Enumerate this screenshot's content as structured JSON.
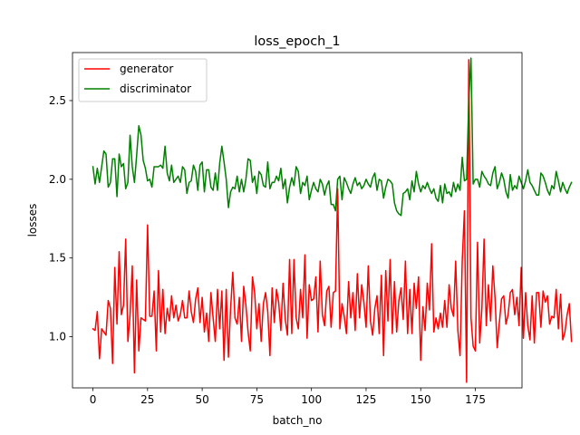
{
  "chart_data": {
    "type": "line",
    "title": "loss_epoch_1",
    "xlabel": "batch_no",
    "ylabel": "losses",
    "xlim": [
      -9.35,
      196.35
    ],
    "ylim": [
      0.675,
      2.805
    ],
    "xticks": [
      0,
      25,
      50,
      75,
      100,
      125,
      150,
      175
    ],
    "yticks": [
      1.0,
      1.5,
      2.0,
      2.5
    ],
    "xtick_labels": [
      "0",
      "25",
      "50",
      "75",
      "100",
      "125",
      "150",
      "175"
    ],
    "ytick_labels": [
      "1.0",
      "1.5",
      "2.0",
      "2.5"
    ],
    "grid": false,
    "legend_position": "upper-left",
    "series": [
      {
        "name": "generator",
        "color": "#ff0000",
        "values": [
          1.05,
          1.04,
          1.16,
          0.86,
          1.05,
          1.03,
          1.01,
          1.23,
          1.18,
          0.83,
          1.44,
          1.08,
          1.54,
          1.14,
          1.2,
          1.62,
          0.97,
          1.14,
          1.45,
          0.77,
          1.36,
          0.91,
          1.12,
          1.11,
          1.1,
          1.71,
          1.13,
          1.13,
          1.29,
          0.91,
          1.42,
          1.03,
          1.3,
          1.02,
          1.18,
          1.1,
          1.26,
          1.12,
          1.2,
          1.1,
          1.14,
          1.23,
          1.12,
          1.12,
          1.29,
          1.16,
          1.09,
          1.24,
          1.31,
          1.09,
          1.25,
          1.03,
          1.15,
          0.97,
          1.28,
          1.12,
          0.97,
          1.3,
          1.05,
          1.29,
          0.85,
          1.3,
          0.87,
          1.18,
          1.41,
          1.12,
          1.08,
          1.25,
          0.97,
          1.32,
          1.2,
          1.03,
          0.91,
          1.38,
          1.28,
          1.05,
          1.21,
          0.97,
          1.21,
          1.28,
          1.16,
          0.88,
          1.31,
          1.09,
          1.3,
          1.22,
          1.04,
          1.34,
          1.11,
          1.01,
          1.49,
          1.02,
          1.49,
          1.12,
          1.05,
          1.3,
          1.12,
          1.52,
          0.99,
          1.33,
          1.23,
          1.24,
          1.38,
          1.03,
          1.48,
          1.14,
          1.07,
          1.29,
          1.32,
          1.06,
          1.28,
          1.29,
          1.94,
          1.05,
          1.21,
          1.13,
          1.02,
          1.35,
          1.12,
          1.28,
          1.04,
          1.4,
          1.12,
          1.33,
          1.22,
          1.06,
          1.45,
          1.1,
          1.01,
          1.18,
          1.26,
          1.02,
          1.39,
          0.88,
          1.42,
          1.1,
          1.49,
          1.02,
          1.35,
          1.03,
          1.23,
          1.31,
          1.11,
          1.48,
          1.02,
          1.3,
          1.02,
          1.34,
          1.18,
          1.38,
          0.85,
          1.19,
          1.04,
          1.34,
          1.17,
          1.59,
          1.03,
          1.12,
          1.05,
          1.15,
          1.06,
          1.23,
          1.06,
          1.33,
          1.18,
          1.13,
          1.48,
          1.04,
          0.88,
          1.48,
          1.8,
          0.71,
          2.76,
          1.12,
          0.94,
          0.91,
          1.6,
          0.96,
          1.18,
          1.62,
          1.07,
          1.33,
          1.1,
          1.45,
          1.25,
          0.93,
          1.09,
          1.24,
          1.26,
          1.08,
          1.14,
          1.28,
          1.3,
          1.14,
          1.25,
          1.07,
          1.44,
          0.99,
          1.28,
          1.07,
          0.98,
          1.26,
          0.96,
          1.28,
          1.28,
          1.06,
          1.29,
          1.22,
          1.26,
          1.08,
          1.13,
          1.12,
          1.3,
          1.05,
          1.27,
          0.98,
          1.03,
          1.14,
          1.21,
          0.97
        ]
      },
      {
        "name": "discriminator",
        "color": "#008000",
        "values": [
          2.08,
          1.97,
          2.07,
          1.98,
          2.08,
          2.18,
          2.16,
          1.95,
          1.98,
          2.13,
          2.13,
          1.89,
          2.16,
          2.08,
          2.1,
          1.94,
          1.98,
          2.28,
          2.08,
          1.98,
          2.15,
          2.34,
          2.28,
          2.12,
          2.07,
          1.99,
          2.0,
          1.95,
          2.08,
          2.08,
          2.08,
          2.09,
          2.07,
          2.21,
          2.04,
          1.99,
          2.09,
          1.98,
          2.0,
          2.02,
          1.98,
          2.08,
          2.06,
          1.91,
          1.98,
          1.99,
          2.09,
          2.05,
          1.93,
          2.09,
          2.11,
          1.92,
          2.06,
          2.06,
          1.95,
          1.93,
          2.04,
          1.93,
          2.1,
          2.21,
          2.11,
          2.0,
          1.82,
          1.92,
          1.95,
          1.94,
          2.02,
          1.92,
          2.0,
          1.92,
          2.0,
          2.13,
          2.12,
          1.98,
          2.02,
          1.91,
          2.05,
          2.03,
          1.96,
          1.95,
          2.11,
          1.94,
          1.98,
          1.98,
          2.02,
          1.99,
          2.07,
          1.94,
          2.0,
          1.85,
          1.95,
          2.01,
          1.96,
          2.08,
          2.05,
          1.91,
          1.98,
          1.96,
          2.02,
          1.87,
          1.93,
          1.98,
          1.94,
          1.92,
          2.0,
          1.97,
          1.9,
          1.96,
          1.99,
          1.84,
          1.84,
          1.8,
          2.0,
          2.02,
          1.87,
          2.01,
          1.98,
          1.94,
          1.91,
          1.97,
          2.01,
          1.96,
          1.98,
          1.94,
          1.96,
          2.0,
          1.97,
          1.95,
          2.01,
          2.04,
          1.93,
          2.0,
          1.99,
          1.88,
          1.95,
          2.0,
          1.99,
          1.97,
          1.85,
          1.8,
          1.78,
          1.77,
          1.91,
          1.92,
          1.94,
          1.87,
          1.99,
          1.92,
          2.05,
          1.97,
          1.92,
          1.96,
          1.94,
          1.98,
          1.94,
          1.91,
          1.94,
          1.88,
          1.86,
          1.96,
          1.85,
          1.97,
          1.91,
          1.92,
          1.89,
          1.98,
          1.92,
          1.97,
          1.93,
          2.14,
          1.99,
          2.0,
          2.5,
          2.77,
          1.97,
          2.0,
          2.0,
          1.95,
          2.05,
          2.02,
          2.0,
          1.97,
          1.96,
          2.04,
          2.08,
          1.94,
          1.98,
          2.04,
          2.0,
          1.92,
          1.88,
          2.03,
          1.93,
          1.96,
          1.94,
          2.02,
          1.98,
          1.94,
          1.99,
          2.06,
          1.98,
          1.96,
          1.93,
          1.9,
          1.9,
          2.04,
          2.02,
          1.98,
          1.93,
          1.9,
          1.96,
          1.94,
          2.05,
          1.99,
          1.92,
          1.98,
          1.94,
          1.91,
          1.95,
          1.98
        ]
      }
    ]
  }
}
